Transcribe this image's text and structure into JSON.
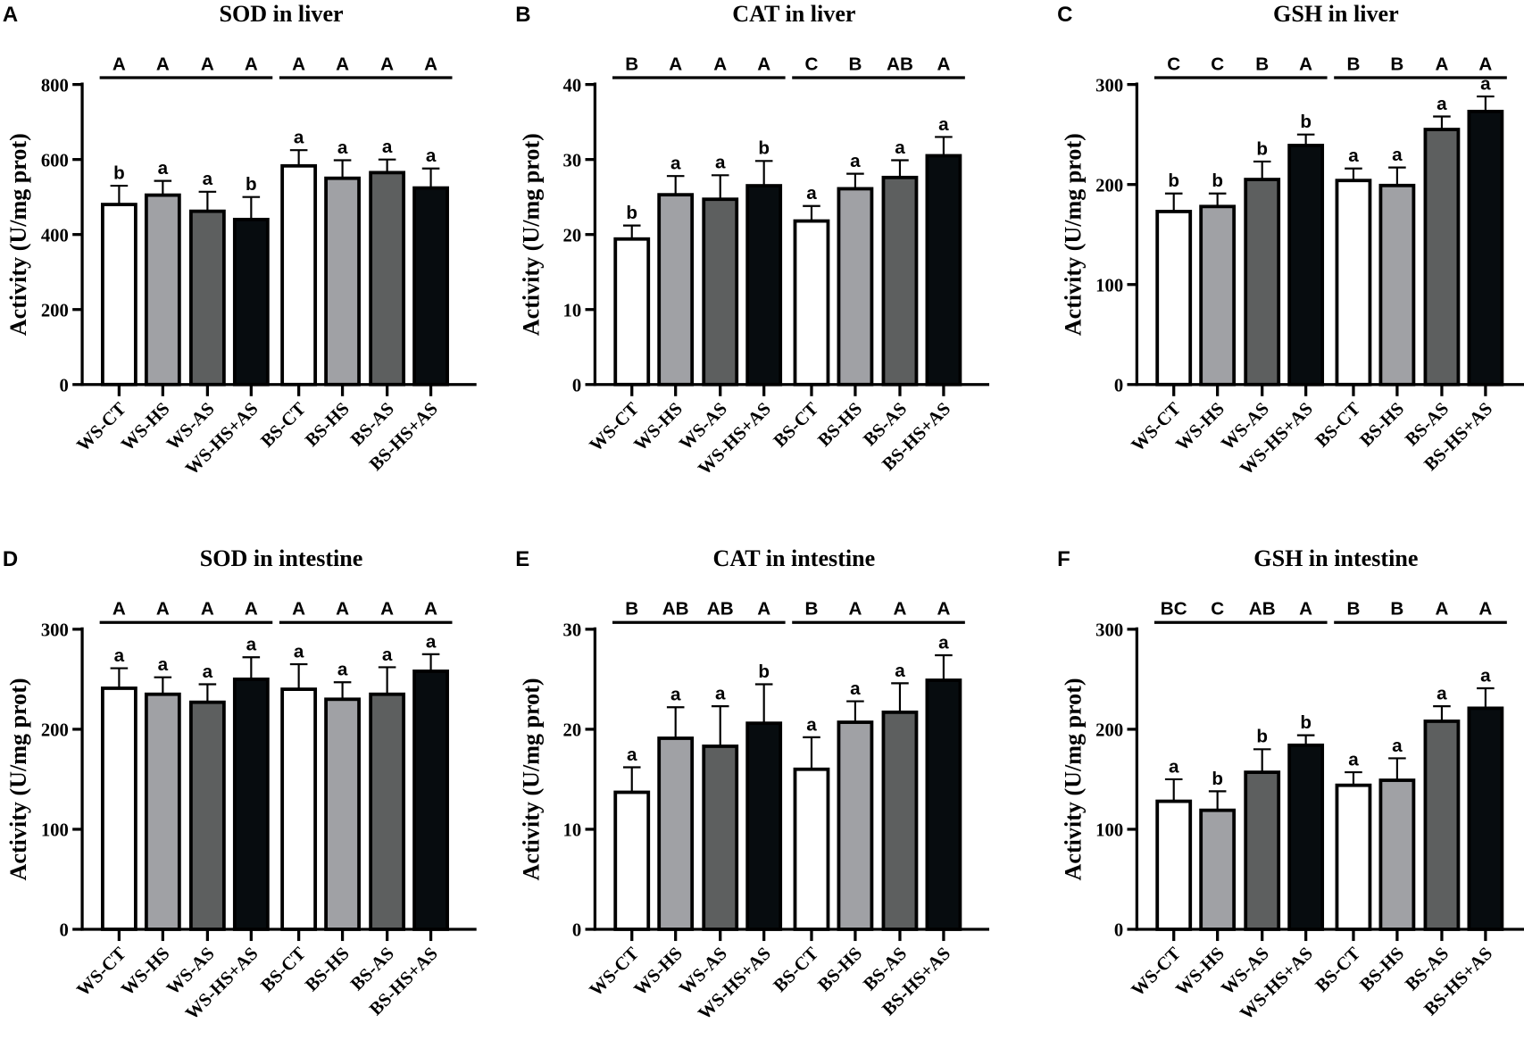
{
  "colors": {
    "WS-CT": "#ffffff",
    "WS-HS": "#a0a1a5",
    "WS-AS": "#5d5f5f",
    "WS-HS+AS": "#070c0f",
    "BS-CT": "#ffffff",
    "BS-HS": "#a0a1a5",
    "BS-AS": "#5d5f5f",
    "BS-HS+AS": "#070c0f"
  },
  "chart_data": [
    {
      "panel": "A",
      "type": "bar",
      "title": "SOD in liver",
      "ylabel": "Activity (U/mg prot)",
      "ylim": [
        0,
        800
      ],
      "yticks": [
        0,
        200,
        400,
        600,
        800
      ],
      "categories": [
        "WS-CT",
        "WS-HS",
        "WS-AS",
        "WS-HS+AS",
        "BS-CT",
        "BS-HS",
        "BS-AS",
        "BS-HS+AS"
      ],
      "values": [
        480,
        505,
        462,
        440,
        583,
        550,
        565,
        524
      ],
      "errors": [
        50,
        38,
        52,
        60,
        42,
        48,
        35,
        52
      ],
      "letters": [
        "b",
        "a",
        "a",
        "b",
        "a",
        "a",
        "a",
        "a"
      ],
      "group_letters": [
        "A",
        "A",
        "A",
        "A",
        "A",
        "A",
        "A",
        "A"
      ]
    },
    {
      "panel": "B",
      "type": "bar",
      "title": "CAT in liver",
      "ylabel": "Activity (U/mg prot)",
      "ylim": [
        0,
        40
      ],
      "yticks": [
        0,
        10,
        20,
        30,
        40
      ],
      "categories": [
        "WS-CT",
        "WS-HS",
        "WS-AS",
        "WS-HS+AS",
        "BS-CT",
        "BS-HS",
        "BS-AS",
        "BS-HS+AS"
      ],
      "values": [
        19.4,
        25.3,
        24.7,
        26.5,
        21.8,
        26.1,
        27.6,
        30.5
      ],
      "errors": [
        1.8,
        2.5,
        3.2,
        3.3,
        2.0,
        2.0,
        2.3,
        2.5
      ],
      "letters": [
        "b",
        "a",
        "a",
        "b",
        "a",
        "a",
        "a",
        "a"
      ],
      "group_letters": [
        "B",
        "A",
        "A",
        "A",
        "C",
        "B",
        "AB",
        "A"
      ]
    },
    {
      "panel": "C",
      "type": "bar",
      "title": "GSH in liver",
      "ylabel": "Activity (U/mg prot)",
      "ylim": [
        0,
        300
      ],
      "yticks": [
        0,
        100,
        200,
        300
      ],
      "categories": [
        "WS-CT",
        "WS-HS",
        "WS-AS",
        "WS-HS+AS",
        "BS-CT",
        "BS-HS",
        "BS-AS",
        "BS-HS+AS"
      ],
      "values": [
        173,
        178,
        205,
        239,
        204,
        199,
        255,
        273
      ],
      "errors": [
        18,
        13,
        18,
        11,
        12,
        18,
        13,
        15
      ],
      "letters": [
        "b",
        "b",
        "b",
        "b",
        "a",
        "a",
        "a",
        "a"
      ],
      "group_letters": [
        "C",
        "C",
        "B",
        "A",
        "B",
        "B",
        "A",
        "A"
      ]
    },
    {
      "panel": "D",
      "type": "bar",
      "title": "SOD in intestine",
      "ylabel": "Activity (U/mg prot)",
      "ylim": [
        0,
        300
      ],
      "yticks": [
        0,
        100,
        200,
        300
      ],
      "categories": [
        "WS-CT",
        "WS-HS",
        "WS-AS",
        "WS-HS+AS",
        "BS-CT",
        "BS-HS",
        "BS-AS",
        "BS-HS+AS"
      ],
      "values": [
        241,
        235,
        227,
        250,
        240,
        230,
        235,
        258
      ],
      "errors": [
        20,
        17,
        18,
        22,
        25,
        17,
        27,
        17
      ],
      "letters": [
        "a",
        "a",
        "a",
        "a",
        "a",
        "a",
        "a",
        "a"
      ],
      "group_letters": [
        "A",
        "A",
        "A",
        "A",
        "A",
        "A",
        "A",
        "A"
      ]
    },
    {
      "panel": "E",
      "type": "bar",
      "title": "CAT in intestine",
      "ylabel": "Activity (U/mg prot)",
      "ylim": [
        0,
        30
      ],
      "yticks": [
        0,
        10,
        20,
        30
      ],
      "categories": [
        "WS-CT",
        "WS-HS",
        "WS-AS",
        "WS-HS+AS",
        "BS-CT",
        "BS-HS",
        "BS-AS",
        "BS-HS+AS"
      ],
      "values": [
        13.7,
        19.1,
        18.3,
        20.6,
        16.0,
        20.7,
        21.7,
        24.9
      ],
      "errors": [
        2.5,
        3.1,
        4.0,
        3.9,
        3.2,
        2.1,
        2.9,
        2.5
      ],
      "letters": [
        "a",
        "a",
        "a",
        "b",
        "a",
        "a",
        "a",
        "a"
      ],
      "group_letters": [
        "B",
        "AB",
        "AB",
        "A",
        "B",
        "A",
        "A",
        "A"
      ]
    },
    {
      "panel": "F",
      "type": "bar",
      "title": "GSH in intestine",
      "ylabel": "Activity (U/mg prot)",
      "ylim": [
        0,
        300
      ],
      "yticks": [
        0,
        100,
        200,
        300
      ],
      "categories": [
        "WS-CT",
        "WS-HS",
        "WS-AS",
        "WS-HS+AS",
        "BS-CT",
        "BS-HS",
        "BS-AS",
        "BS-HS+AS"
      ],
      "values": [
        128,
        119,
        157,
        184,
        144,
        149,
        208,
        221
      ],
      "errors": [
        22,
        19,
        23,
        10,
        13,
        22,
        15,
        20
      ],
      "letters": [
        "a",
        "b",
        "b",
        "b",
        "a",
        "a",
        "a",
        "a"
      ],
      "group_letters": [
        "BC",
        "C",
        "AB",
        "A",
        "B",
        "B",
        "A",
        "A"
      ]
    }
  ]
}
